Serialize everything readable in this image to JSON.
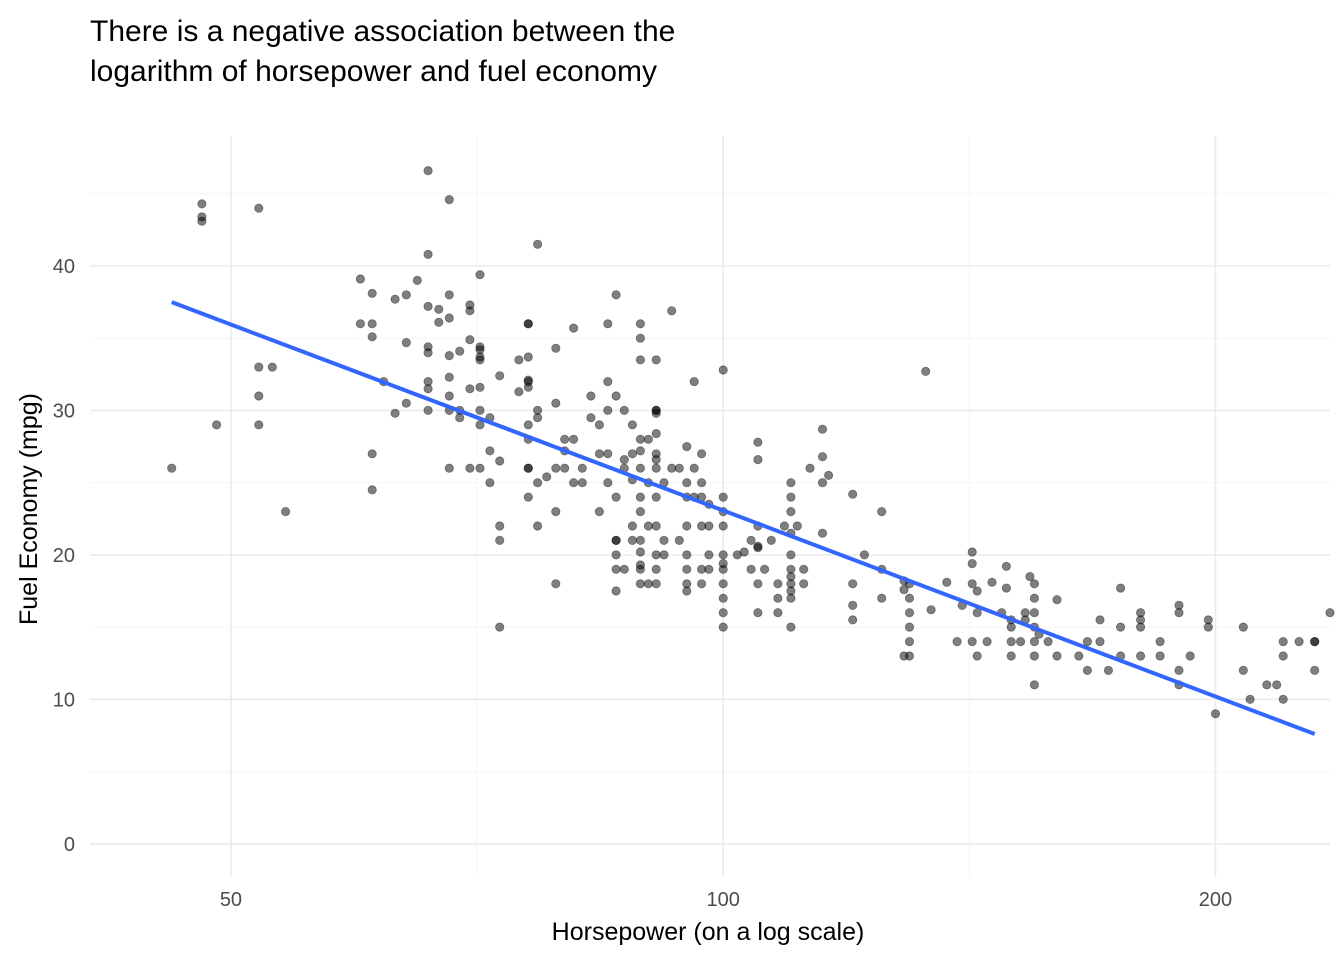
{
  "chart_data": {
    "type": "scatter",
    "title": "There is a negative association between the\nlogarithm of horsepower and fuel economy",
    "xlabel": "Horsepower (on a log scale)",
    "ylabel": "Fuel Economy (mpg)",
    "x_scale": "log10",
    "xlim": [
      41,
      235
    ],
    "ylim": [
      -2.3,
      49
    ],
    "x_ticks": [
      50,
      100,
      200
    ],
    "x_tick_labels": [
      "50",
      "100",
      "200"
    ],
    "y_ticks": [
      0,
      10,
      20,
      30,
      40
    ],
    "y_tick_labels": [
      "0",
      "10",
      "20",
      "30",
      "40"
    ],
    "grid": true,
    "legend": "none",
    "colors": {
      "points": "#000000",
      "point_alpha": 0.5,
      "fit_line": "#3366ff",
      "grid_major": "#ebebeb",
      "grid_minor": "#f5f5f5",
      "tick_text": "#4d4d4d"
    },
    "fit_line": {
      "x": [
        46,
        230
      ],
      "y": [
        37.5,
        7.6
      ]
    },
    "points": [
      [
        46,
        26
      ],
      [
        48,
        44.3
      ],
      [
        48,
        43.4
      ],
      [
        48,
        43.1
      ],
      [
        49,
        29
      ],
      [
        52,
        44
      ],
      [
        52,
        33
      ],
      [
        52,
        31
      ],
      [
        52,
        29
      ],
      [
        53,
        33
      ],
      [
        54,
        23
      ],
      [
        60,
        39.1
      ],
      [
        60,
        36
      ],
      [
        61,
        35.1
      ],
      [
        61,
        38.1
      ],
      [
        61,
        36
      ],
      [
        61,
        27
      ],
      [
        61,
        24.5
      ],
      [
        62,
        32
      ],
      [
        63,
        29.8
      ],
      [
        63,
        37.7
      ],
      [
        64,
        30.5
      ],
      [
        64,
        34.7
      ],
      [
        64,
        38
      ],
      [
        65,
        39
      ],
      [
        66,
        37.2
      ],
      [
        66,
        46.6
      ],
      [
        66,
        40.8
      ],
      [
        66,
        34.4
      ],
      [
        66,
        34
      ],
      [
        66,
        32
      ],
      [
        66,
        31.5
      ],
      [
        66,
        30
      ],
      [
        67,
        36.1
      ],
      [
        67,
        37
      ],
      [
        68,
        38
      ],
      [
        68,
        32.3
      ],
      [
        68,
        31
      ],
      [
        68,
        30
      ],
      [
        68,
        26
      ],
      [
        68,
        33.8
      ],
      [
        68,
        44.6
      ],
      [
        68,
        36.4
      ],
      [
        69,
        34.1
      ],
      [
        69,
        29.5
      ],
      [
        69,
        30
      ],
      [
        70,
        31.5
      ],
      [
        70,
        36.9
      ],
      [
        70,
        37.3
      ],
      [
        70,
        26
      ],
      [
        70,
        34.9
      ],
      [
        71,
        33.7
      ],
      [
        71,
        29
      ],
      [
        71,
        26
      ],
      [
        71,
        30
      ],
      [
        71,
        34.4
      ],
      [
        71,
        34.2
      ],
      [
        71,
        33.5
      ],
      [
        71,
        39.4
      ],
      [
        71,
        31.6
      ],
      [
        72,
        27.2
      ],
      [
        72,
        25
      ],
      [
        72,
        29.5
      ],
      [
        73,
        32.4
      ],
      [
        73,
        26.5
      ],
      [
        73,
        22
      ],
      [
        73,
        21
      ],
      [
        73,
        15
      ],
      [
        75,
        31.3
      ],
      [
        75,
        33.5
      ],
      [
        76,
        36
      ],
      [
        76,
        32
      ],
      [
        76,
        26
      ],
      [
        76,
        24
      ],
      [
        76,
        28
      ],
      [
        76,
        29
      ],
      [
        76,
        26
      ],
      [
        76,
        36
      ],
      [
        76,
        32.1
      ],
      [
        76,
        33.7
      ],
      [
        76,
        31.6
      ],
      [
        77,
        25
      ],
      [
        77,
        22
      ],
      [
        77,
        41.5
      ],
      [
        77,
        30
      ],
      [
        77,
        29.5
      ],
      [
        78,
        25.4
      ],
      [
        79,
        30.5
      ],
      [
        79,
        34.3
      ],
      [
        79,
        18
      ],
      [
        79,
        23
      ],
      [
        79,
        26
      ],
      [
        80,
        28
      ],
      [
        80,
        27.2
      ],
      [
        80,
        26
      ],
      [
        81,
        25
      ],
      [
        81,
        28
      ],
      [
        81,
        35.7
      ],
      [
        82,
        26
      ],
      [
        82,
        25
      ],
      [
        83,
        29.5
      ],
      [
        83,
        31
      ],
      [
        84,
        27
      ],
      [
        84,
        23
      ],
      [
        84,
        29
      ],
      [
        85,
        30
      ],
      [
        85,
        36
      ],
      [
        85,
        27
      ],
      [
        85,
        25
      ],
      [
        85,
        32
      ],
      [
        86,
        31
      ],
      [
        86,
        20
      ],
      [
        86,
        21
      ],
      [
        86,
        24
      ],
      [
        86,
        19
      ],
      [
        86,
        17.5
      ],
      [
        86,
        38
      ],
      [
        86,
        21
      ],
      [
        87,
        26.6
      ],
      [
        87,
        30
      ],
      [
        87,
        26
      ],
      [
        87,
        19
      ],
      [
        88,
        27
      ],
      [
        88,
        29
      ],
      [
        88,
        21
      ],
      [
        88,
        22
      ],
      [
        88,
        25.2
      ],
      [
        89,
        28
      ],
      [
        89,
        27.2
      ],
      [
        89,
        26
      ],
      [
        89,
        24
      ],
      [
        89,
        23
      ],
      [
        89,
        21
      ],
      [
        89,
        20.2
      ],
      [
        89,
        19.3
      ],
      [
        89,
        19
      ],
      [
        89,
        18
      ],
      [
        89,
        36
      ],
      [
        89,
        35
      ],
      [
        89,
        33.5
      ],
      [
        90,
        25
      ],
      [
        90,
        18
      ],
      [
        90,
        22
      ],
      [
        90,
        28
      ],
      [
        91,
        30
      ],
      [
        91,
        27
      ],
      [
        91,
        26
      ],
      [
        91,
        24
      ],
      [
        91,
        22
      ],
      [
        91,
        20
      ],
      [
        91,
        19
      ],
      [
        91,
        18
      ],
      [
        91,
        28.4
      ],
      [
        91,
        29.8
      ],
      [
        91,
        26.6
      ],
      [
        91,
        33.5
      ],
      [
        91,
        30
      ],
      [
        92,
        25
      ],
      [
        92,
        20
      ],
      [
        92,
        21
      ],
      [
        93,
        26
      ],
      [
        93,
        36.9
      ],
      [
        94,
        26
      ],
      [
        94,
        21
      ],
      [
        95,
        25
      ],
      [
        95,
        24
      ],
      [
        95,
        22
      ],
      [
        95,
        20
      ],
      [
        95,
        19
      ],
      [
        95,
        18
      ],
      [
        95,
        17.5
      ],
      [
        95,
        27.5
      ],
      [
        96,
        24
      ],
      [
        96,
        32
      ],
      [
        96,
        26
      ],
      [
        97,
        24
      ],
      [
        97,
        22
      ],
      [
        97,
        19
      ],
      [
        97,
        18
      ],
      [
        97,
        25
      ],
      [
        97,
        27
      ],
      [
        98,
        23.5
      ],
      [
        98,
        20
      ],
      [
        98,
        19
      ],
      [
        98,
        22
      ],
      [
        100,
        32.8
      ],
      [
        100,
        24
      ],
      [
        100,
        23
      ],
      [
        100,
        20
      ],
      [
        100,
        19.4
      ],
      [
        100,
        19
      ],
      [
        100,
        18
      ],
      [
        100,
        17
      ],
      [
        100,
        16
      ],
      [
        100,
        15
      ],
      [
        100,
        22
      ],
      [
        102,
        20
      ],
      [
        103,
        20.2
      ],
      [
        104,
        19
      ],
      [
        104,
        21
      ],
      [
        105,
        26.6
      ],
      [
        105,
        27.8
      ],
      [
        105,
        22
      ],
      [
        105,
        18
      ],
      [
        105,
        16
      ],
      [
        105,
        20.5
      ],
      [
        105,
        20.6
      ],
      [
        106,
        19
      ],
      [
        107,
        21
      ],
      [
        108,
        18
      ],
      [
        108,
        17
      ],
      [
        108,
        16
      ],
      [
        109,
        22
      ],
      [
        110,
        25
      ],
      [
        110,
        24
      ],
      [
        110,
        23
      ],
      [
        110,
        21.5
      ],
      [
        110,
        20
      ],
      [
        110,
        18.5
      ],
      [
        110,
        18
      ],
      [
        110,
        17.5
      ],
      [
        110,
        17
      ],
      [
        110,
        15
      ],
      [
        110,
        19
      ],
      [
        111,
        22
      ],
      [
        112,
        19
      ],
      [
        112,
        18
      ],
      [
        113,
        26
      ],
      [
        115,
        21.5
      ],
      [
        115,
        25
      ],
      [
        115,
        26.8
      ],
      [
        115,
        28.7
      ],
      [
        116,
        25.5
      ],
      [
        120,
        18
      ],
      [
        120,
        24.2
      ],
      [
        120,
        16.5
      ],
      [
        120,
        15.5
      ],
      [
        122,
        20
      ],
      [
        125,
        17
      ],
      [
        125,
        19
      ],
      [
        125,
        23
      ],
      [
        129,
        17.6
      ],
      [
        129,
        13
      ],
      [
        129,
        18.2
      ],
      [
        130,
        18
      ],
      [
        130,
        17
      ],
      [
        130,
        16
      ],
      [
        130,
        15
      ],
      [
        130,
        14
      ],
      [
        130,
        13
      ],
      [
        133,
        32.7
      ],
      [
        134,
        16.2
      ],
      [
        137,
        18.1
      ],
      [
        139,
        14
      ],
      [
        140,
        16.5
      ],
      [
        142,
        20.2
      ],
      [
        142,
        19.4
      ],
      [
        142,
        18
      ],
      [
        142,
        14
      ],
      [
        143,
        17.5
      ],
      [
        143,
        16
      ],
      [
        143,
        13
      ],
      [
        145,
        14
      ],
      [
        146,
        18.1
      ],
      [
        148,
        16
      ],
      [
        149,
        19.2
      ],
      [
        149,
        17.7
      ],
      [
        150,
        15.5
      ],
      [
        150,
        15
      ],
      [
        150,
        14
      ],
      [
        150,
        13
      ],
      [
        152,
        14
      ],
      [
        153,
        16
      ],
      [
        153,
        15.5
      ],
      [
        154,
        18.5
      ],
      [
        155,
        18
      ],
      [
        155,
        17
      ],
      [
        155,
        16
      ],
      [
        155,
        15
      ],
      [
        155,
        14
      ],
      [
        155,
        13
      ],
      [
        155,
        11
      ],
      [
        156,
        14.5
      ],
      [
        158,
        14
      ],
      [
        160,
        16.9
      ],
      [
        160,
        13
      ],
      [
        165,
        13
      ],
      [
        167,
        12
      ],
      [
        167,
        14
      ],
      [
        170,
        14
      ],
      [
        170,
        15.5
      ],
      [
        172,
        12
      ],
      [
        175,
        13
      ],
      [
        175,
        15
      ],
      [
        175,
        17.7
      ],
      [
        180,
        13
      ],
      [
        180,
        15
      ],
      [
        180,
        16
      ],
      [
        180,
        15.5
      ],
      [
        185,
        13
      ],
      [
        185,
        14
      ],
      [
        190,
        16.5
      ],
      [
        190,
        16
      ],
      [
        190,
        12
      ],
      [
        190,
        11
      ],
      [
        193,
        13
      ],
      [
        198,
        15
      ],
      [
        198,
        15.5
      ],
      [
        200,
        9
      ],
      [
        208,
        12
      ],
      [
        208,
        15
      ],
      [
        210,
        10
      ],
      [
        215,
        11
      ],
      [
        218,
        11
      ],
      [
        220,
        13
      ],
      [
        220,
        14
      ],
      [
        220,
        10
      ],
      [
        225,
        14
      ],
      [
        230,
        14
      ],
      [
        230,
        14
      ],
      [
        230,
        12
      ],
      [
        235,
        16
      ]
    ]
  }
}
